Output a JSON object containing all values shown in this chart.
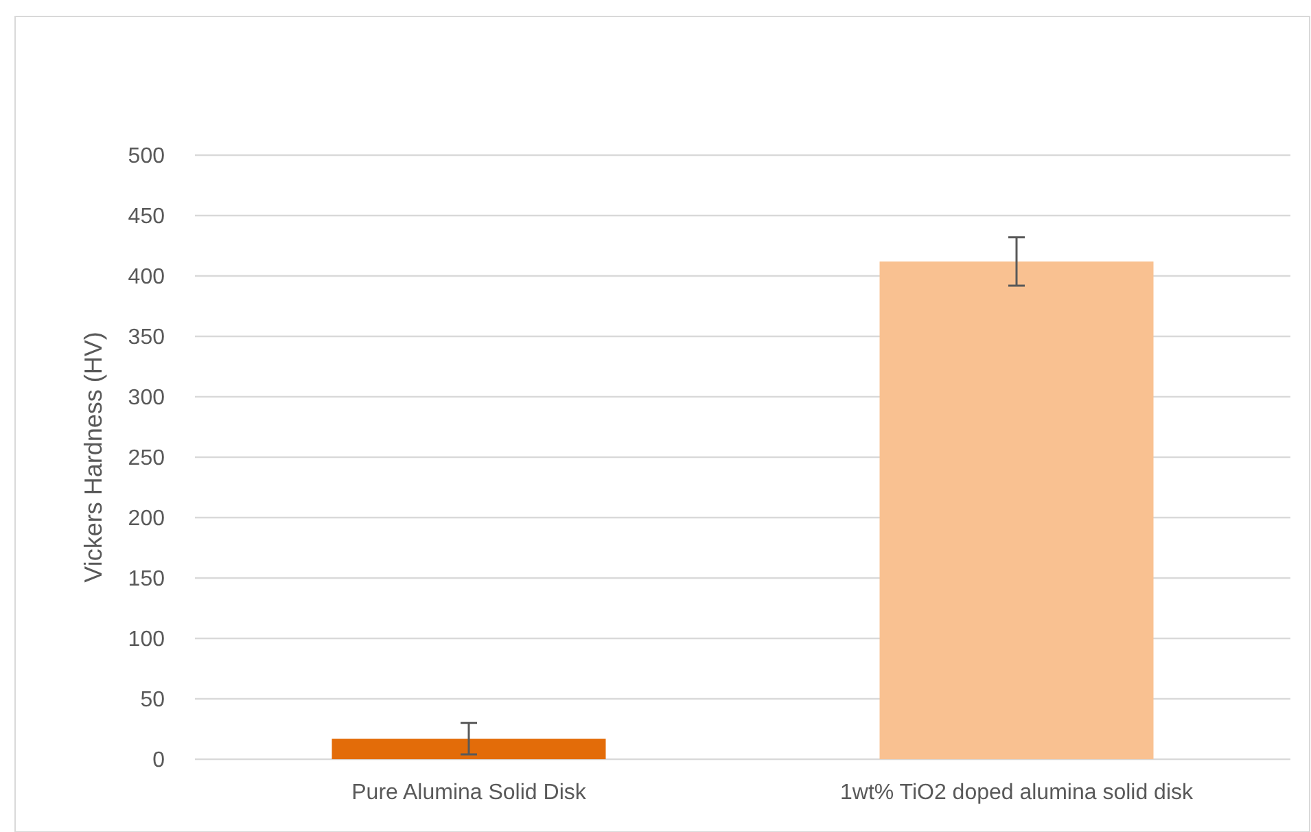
{
  "chart_data": {
    "type": "bar",
    "ylabel": "Vickers Hardness (HV)",
    "categories": [
      "Pure Alumina Solid Disk",
      "1wt% TiO2 doped alumina solid disk"
    ],
    "values": [
      17,
      412
    ],
    "colors": [
      "#e36c09",
      "#f9c191"
    ],
    "errors": [
      13,
      20
    ],
    "ylim": [
      0,
      500
    ],
    "yticks": [
      0,
      50,
      100,
      150,
      200,
      250,
      300,
      350,
      400,
      450,
      500
    ],
    "grid": "y"
  }
}
